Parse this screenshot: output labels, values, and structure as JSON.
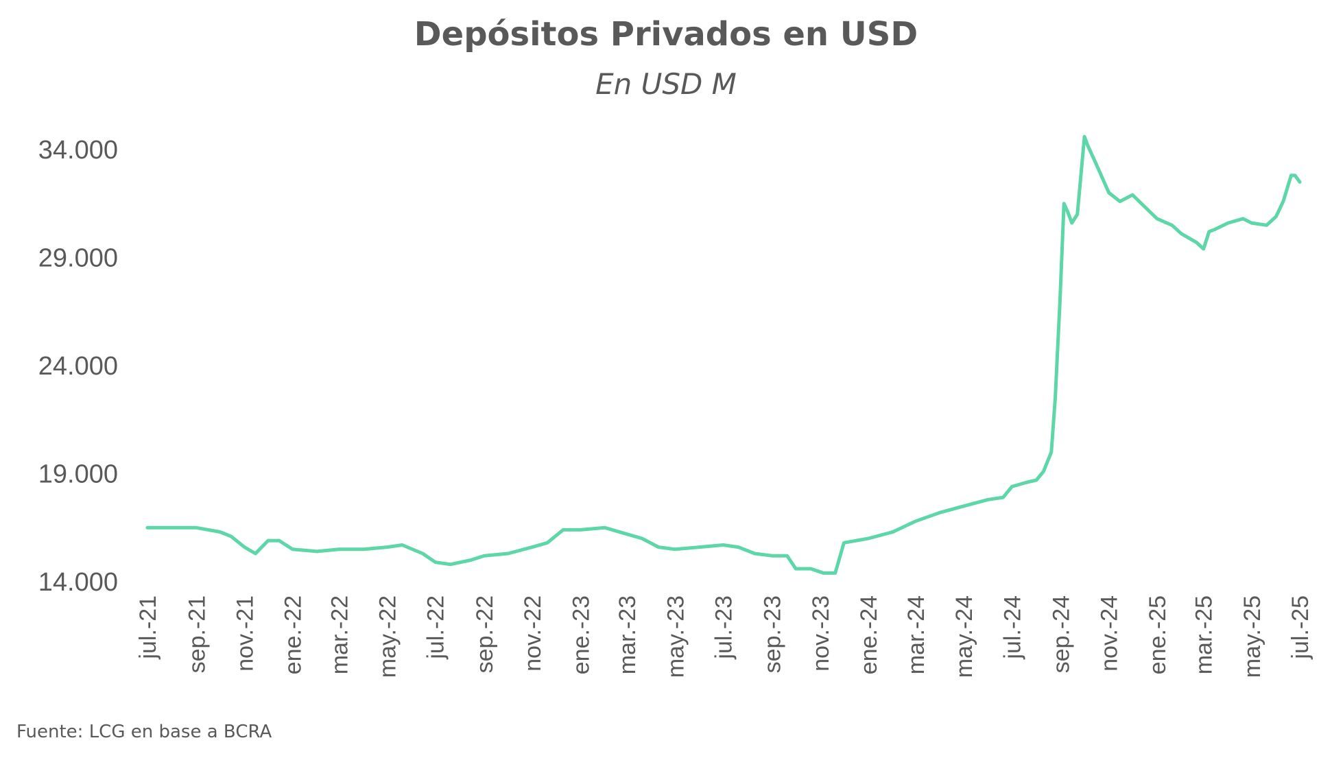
{
  "chart_data": {
    "type": "line",
    "title": "Depósitos Privados en USD",
    "subtitle": "En USD M",
    "source": "Fuente: LCG en base a BCRA",
    "xlabel": "",
    "ylabel": "",
    "ylim": [
      14000,
      34000
    ],
    "yticks": [
      "34.000",
      "29.000",
      "24.000",
      "19.000",
      "14.000"
    ],
    "ytick_values": [
      34000,
      29000,
      24000,
      19000,
      14000
    ],
    "xlim": [
      "2021-07-01",
      "2025-07-01"
    ],
    "xticks": [
      "jul.-21",
      "sep.-21",
      "nov.-21",
      "ene.-22",
      "mar.-22",
      "may.-22",
      "jul.-22",
      "sep.-22",
      "nov.-22",
      "ene.-23",
      "mar.-23",
      "may.-23",
      "jul.-23",
      "sep.-23",
      "nov.-23",
      "ene.-24",
      "mar.-24",
      "may.-24",
      "jul.-24",
      "sep.-24",
      "nov.-24",
      "ene.-25",
      "mar.-25",
      "may.-25",
      "jul.-25"
    ],
    "grid": false,
    "legend": "none",
    "color": "#5dd6a8",
    "series": [
      {
        "x": [
          "2021-07-01",
          "2021-08-01",
          "2021-09-01",
          "2021-10-01",
          "2021-10-15",
          "2021-11-01",
          "2021-11-15",
          "2021-12-01",
          "2021-12-15",
          "2022-01-01",
          "2022-02-01",
          "2022-03-01",
          "2022-04-01",
          "2022-05-01",
          "2022-05-20",
          "2022-06-15",
          "2022-07-01",
          "2022-07-20",
          "2022-08-15",
          "2022-09-01",
          "2022-10-01",
          "2022-11-01",
          "2022-11-20",
          "2022-12-10",
          "2023-01-01",
          "2023-02-01",
          "2023-03-01",
          "2023-03-20",
          "2023-04-10",
          "2023-05-01",
          "2023-06-01",
          "2023-07-01",
          "2023-07-20",
          "2023-08-10",
          "2023-09-01",
          "2023-09-20",
          "2023-10-01",
          "2023-10-20",
          "2023-11-05",
          "2023-11-20",
          "2023-12-01",
          "2024-01-01",
          "2024-02-01",
          "2024-03-01",
          "2024-04-01",
          "2024-05-01",
          "2024-06-01",
          "2024-06-20",
          "2024-07-01",
          "2024-07-20",
          "2024-08-01",
          "2024-08-10",
          "2024-08-20",
          "2024-08-25",
          "2024-08-31",
          "2024-09-05",
          "2024-09-10",
          "2024-09-15",
          "2024-09-22",
          "2024-10-01",
          "2024-10-05",
          "2024-10-15",
          "2024-11-01",
          "2024-11-15",
          "2024-12-01",
          "2024-12-15",
          "2025-01-01",
          "2025-01-20",
          "2025-02-01",
          "2025-02-20",
          "2025-03-01",
          "2025-03-08",
          "2025-03-15",
          "2025-04-01",
          "2025-04-20",
          "2025-05-01",
          "2025-05-20",
          "2025-06-01",
          "2025-06-10",
          "2025-06-20",
          "2025-06-25",
          "2025-07-01"
        ],
        "values": [
          16500,
          16500,
          16500,
          16300,
          16100,
          15600,
          15300,
          15900,
          15900,
          15500,
          15400,
          15500,
          15500,
          15600,
          15700,
          15300,
          14900,
          14800,
          15000,
          15200,
          15300,
          15600,
          15800,
          16400,
          16400,
          16500,
          16200,
          16000,
          15600,
          15500,
          15600,
          15700,
          15600,
          15300,
          15200,
          15200,
          14600,
          14600,
          14400,
          14400,
          15800,
          16000,
          16300,
          16800,
          17200,
          17500,
          17800,
          17900,
          18400,
          18600,
          18700,
          19100,
          20000,
          22500,
          27000,
          31500,
          31100,
          30600,
          31000,
          34600,
          34200,
          33400,
          32000,
          31600,
          31900,
          31400,
          30800,
          30500,
          30100,
          29700,
          29400,
          30200,
          30300,
          30600,
          30800,
          30600,
          30500,
          30900,
          31600,
          32800,
          32800,
          32500
        ]
      }
    ]
  }
}
